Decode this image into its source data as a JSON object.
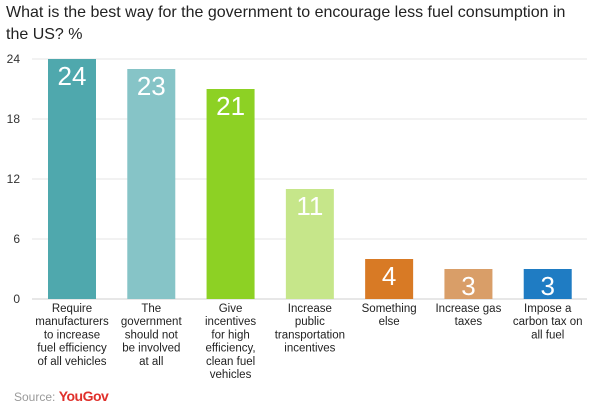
{
  "chart_data": {
    "type": "bar",
    "title": "What is the best way for the government to encourage less fuel consumption in the US? %",
    "categories": [
      "Require manufacturers to increase fuel efficiency of all vehicles",
      "The government should not be involved at all",
      "Give incentives for high efficiency, clean fuel vehicles",
      "Increase public transportation incentives",
      "Something else",
      "Increase gas taxes",
      "Impose a carbon tax on all fuel"
    ],
    "category_lines": [
      [
        "Require",
        "manufacturers",
        "to increase",
        "fuel efficiency",
        "of all vehicles"
      ],
      [
        "The",
        "government",
        "should not",
        "be involved",
        "at all"
      ],
      [
        "Give",
        "incentives",
        "for high",
        "efficiency,",
        "clean fuel",
        "vehicles"
      ],
      [
        "Increase",
        "public",
        "transportation",
        "incentives"
      ],
      [
        "Something",
        "else"
      ],
      [
        "Increase gas",
        "taxes"
      ],
      [
        "Impose a",
        "carbon tax on",
        "all fuel"
      ]
    ],
    "values": [
      24,
      23,
      21,
      11,
      4,
      3,
      3
    ],
    "colors": [
      "#4fa8ad",
      "#86c4c7",
      "#8dd124",
      "#c6e68a",
      "#d87a25",
      "#d99e68",
      "#1f7cc3"
    ],
    "yticks": [
      0,
      6,
      12,
      18,
      24
    ],
    "ylim": [
      0,
      24
    ],
    "grid": true,
    "xlabel": "",
    "ylabel": ""
  },
  "source": {
    "label": "Source:",
    "logo": "YouGov"
  }
}
